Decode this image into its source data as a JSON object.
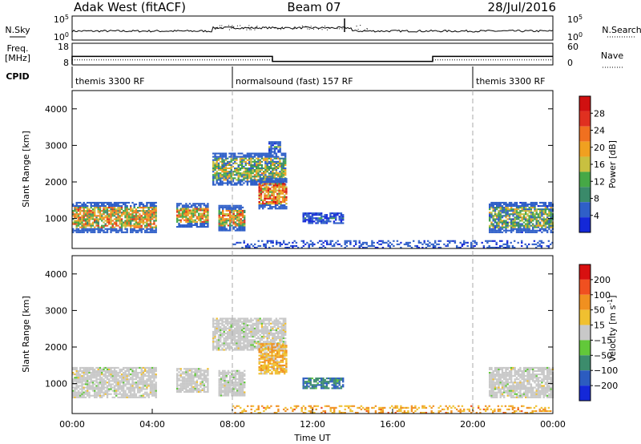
{
  "header": {
    "radar": "Adak West (fitACF)",
    "beam": "Beam 07",
    "date": "28/Jul/2016"
  },
  "noise_panel": {
    "left_label": "N.Sky",
    "right_label": "N.Search",
    "left_ticks": [
      "10^5",
      "10^0"
    ],
    "right_ticks": [
      "10^5",
      "10^0"
    ]
  },
  "freq_panel": {
    "left_label_1": "Freq.",
    "left_label_2": "[MHz]",
    "right_label": "Nave",
    "left_ticks": [
      "18",
      "8"
    ],
    "right_ticks": [
      "60",
      "0"
    ],
    "freq_steps": [
      {
        "start": 0.0,
        "end": 10.0,
        "value": 11.7
      },
      {
        "start": 10.0,
        "end": 18.0,
        "value": 9.3
      },
      {
        "start": 18.0,
        "end": 24.0,
        "value": 11.7
      }
    ],
    "nave_steps": [
      {
        "start": 0.0,
        "end": 10.0,
        "value": 12
      },
      {
        "start": 10.0,
        "end": 18.0,
        "value": 8
      },
      {
        "start": 18.0,
        "end": 24.0,
        "value": 12
      }
    ]
  },
  "cpid": {
    "label": "CPID",
    "segments": [
      {
        "start": 0.0,
        "end": 8.0,
        "label": "themis 3300 RF"
      },
      {
        "start": 8.0,
        "end": 20.0,
        "label": "normalsound (fast) 157 RF"
      },
      {
        "start": 20.0,
        "end": 24.0,
        "label": "themis 3300 RF"
      }
    ]
  },
  "chart_data": [
    {
      "type": "heatmap",
      "name": "power",
      "ylabel": "Slant Range [km]",
      "yticks": [
        "1000",
        "2000",
        "3000",
        "4000"
      ],
      "ylim": [
        180,
        4500
      ],
      "colorbar_label": "Power [dB]",
      "colorbar_ticks": [
        "4",
        "8",
        "12",
        "16",
        "20",
        "24",
        "28"
      ],
      "colorbar_colors": [
        "#1428d8",
        "#2f5fc8",
        "#3a8a6a",
        "#46a846",
        "#c8c040",
        "#f0a020",
        "#f07020",
        "#e03020",
        "#d01010"
      ],
      "regions": [
        {
          "t0": 0.0,
          "t1": 4.2,
          "r0": 600,
          "r1": 1450,
          "level": 0.55
        },
        {
          "t0": 5.2,
          "t1": 6.8,
          "r0": 750,
          "r1": 1400,
          "level": 0.6
        },
        {
          "t0": 7.3,
          "t1": 8.6,
          "r0": 650,
          "r1": 1350,
          "level": 0.55
        },
        {
          "t0": 7.0,
          "t1": 10.6,
          "r0": 1900,
          "r1": 2800,
          "level": 0.4
        },
        {
          "t0": 9.3,
          "t1": 10.7,
          "r0": 1250,
          "r1": 2100,
          "level": 0.7
        },
        {
          "t0": 9.8,
          "t1": 10.4,
          "r0": 2800,
          "r1": 3100,
          "level": 0.3
        },
        {
          "t0": 11.5,
          "t1": 13.5,
          "r0": 850,
          "r1": 1150,
          "level": 0.1
        },
        {
          "t0": 8.0,
          "t1": 24.0,
          "r0": 180,
          "r1": 400,
          "level": 0.2
        },
        {
          "t0": 20.8,
          "t1": 24.0,
          "r0": 600,
          "r1": 1450,
          "level": 0.35
        }
      ]
    },
    {
      "type": "heatmap",
      "name": "velocity",
      "xlabel": "Time UT",
      "ylabel": "Slant Range [km]",
      "yticks": [
        "1000",
        "2000",
        "3000",
        "4000"
      ],
      "ylim": [
        180,
        4500
      ],
      "xticks": [
        "00:00",
        "04:00",
        "08:00",
        "12:00",
        "16:00",
        "20:00",
        "00:00"
      ],
      "colorbar_label": "Velocity [m s^-1]",
      "colorbar_ticks": [
        "200",
        "100",
        "50",
        "15",
        "-15",
        "-50",
        "-100",
        "-200"
      ],
      "colorbar_colors": [
        "#1428d8",
        "#2c5cc0",
        "#3c8c6c",
        "#62c83a",
        "#c8c8c8",
        "#f0c030",
        "#f09020",
        "#f05020",
        "#d81010"
      ],
      "regions": [
        {
          "t0": 0.0,
          "t1": 4.2,
          "r0": 600,
          "r1": 1450,
          "level": 0.0
        },
        {
          "t0": 5.2,
          "t1": 6.8,
          "r0": 750,
          "r1": 1400,
          "level": 0.0
        },
        {
          "t0": 7.3,
          "t1": 8.6,
          "r0": 650,
          "r1": 1350,
          "level": 0.0
        },
        {
          "t0": 7.0,
          "t1": 10.6,
          "r0": 1900,
          "r1": 2800,
          "level": 0.0
        },
        {
          "t0": 9.3,
          "t1": 10.7,
          "r0": 1250,
          "r1": 2100,
          "level": 0.3
        },
        {
          "t0": 11.5,
          "t1": 13.5,
          "r0": 850,
          "r1": 1150,
          "level": -0.6
        },
        {
          "t0": 8.0,
          "t1": 24.0,
          "r0": 180,
          "r1": 400,
          "level": 0.4
        },
        {
          "t0": 20.8,
          "t1": 24.0,
          "r0": 600,
          "r1": 1450,
          "level": 0.0
        }
      ]
    }
  ]
}
